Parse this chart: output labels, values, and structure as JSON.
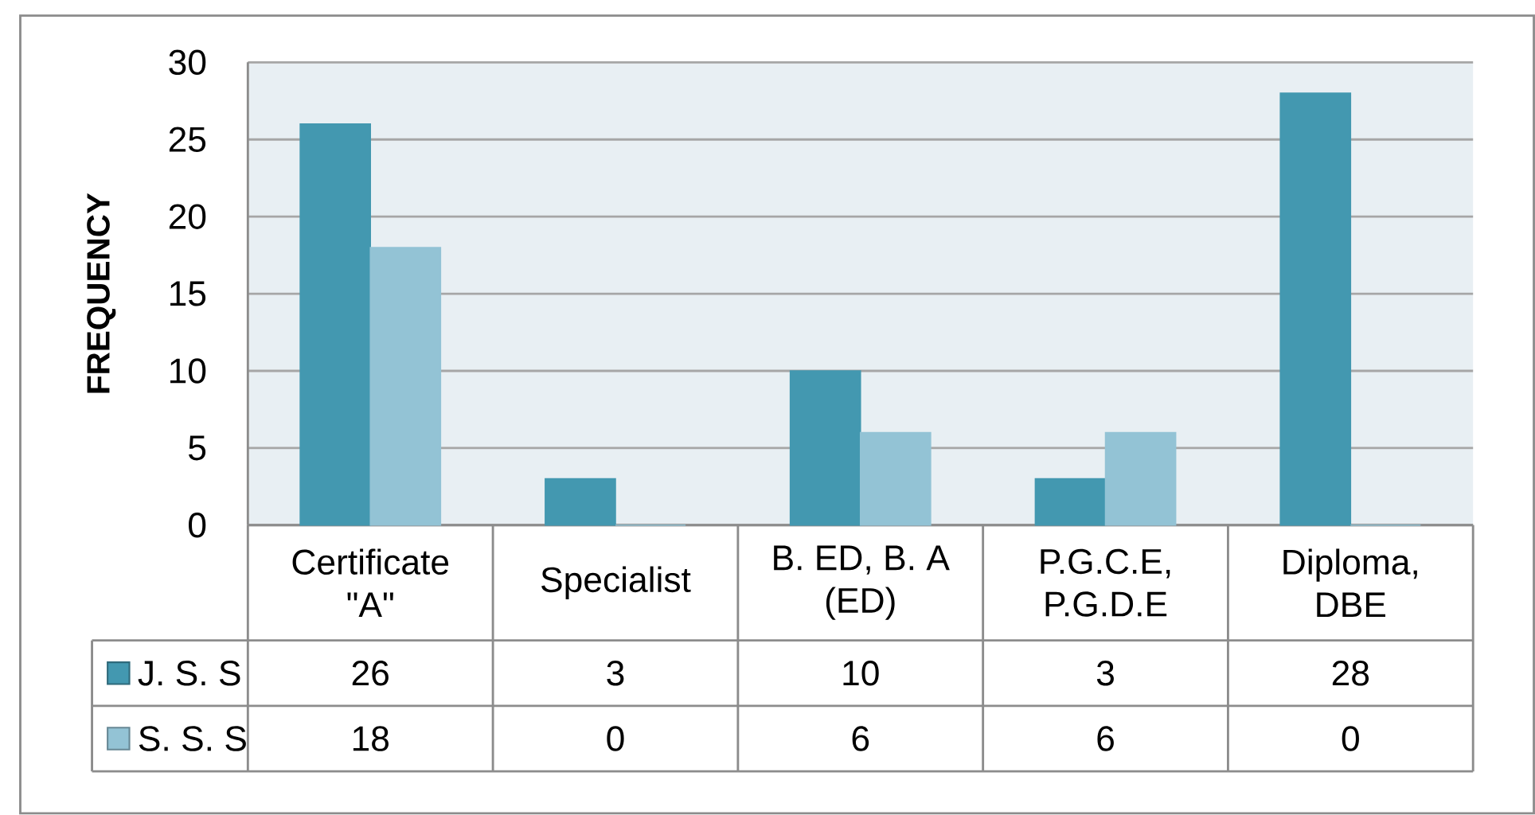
{
  "chart_data": {
    "type": "bar",
    "ylabel": "FREQUENCY",
    "categories": [
      "Certificate \"A\"",
      "Specialist",
      "B. ED, B. A (ED)",
      "P.G.C.E, P.G.D.E",
      "Diploma, DBE"
    ],
    "series": [
      {
        "name": "J. S. S",
        "color": "#4398b0",
        "values": [
          26,
          3,
          10,
          3,
          28
        ]
      },
      {
        "name": "S. S. S",
        "color": "#93c3d5",
        "values": [
          18,
          0,
          6,
          6,
          0
        ]
      }
    ],
    "ylim": [
      0,
      30
    ],
    "yticks": [
      0,
      5,
      10,
      15,
      20,
      25,
      30
    ],
    "grid": "y",
    "legend": "bottom left",
    "data_labels": true
  }
}
